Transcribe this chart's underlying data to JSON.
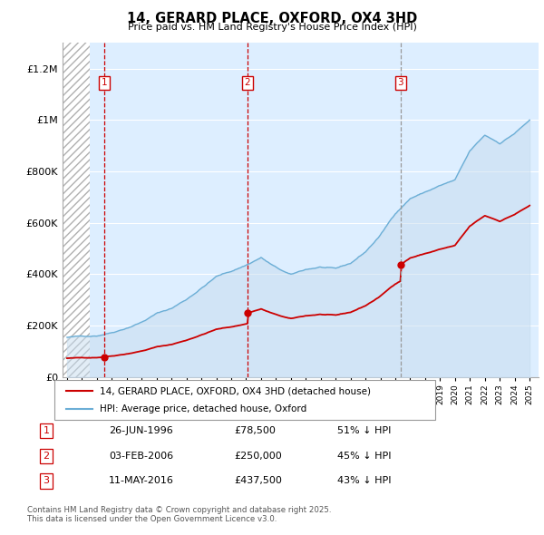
{
  "title": "14, GERARD PLACE, OXFORD, OX4 3HD",
  "subtitle": "Price paid vs. HM Land Registry's House Price Index (HPI)",
  "xlim_start": 1993.7,
  "xlim_end": 2025.6,
  "ylim": [
    0,
    1300000
  ],
  "yticks": [
    0,
    200000,
    400000,
    600000,
    800000,
    1000000,
    1200000
  ],
  "sale_dates": [
    1996.48,
    2006.09,
    2016.36
  ],
  "sale_prices": [
    78500,
    250000,
    437500
  ],
  "sale_labels": [
    "1",
    "2",
    "3"
  ],
  "hpi_line_color": "#6baed6",
  "hpi_fill_color": "#c6dcef",
  "price_line_color": "#cc0000",
  "vline_color_red": "#cc0000",
  "vline_color_gray": "#999999",
  "hatch_color": "#c8c8c8",
  "legend_items": [
    "14, GERARD PLACE, OXFORD, OX4 3HD (detached house)",
    "HPI: Average price, detached house, Oxford"
  ],
  "table_rows": [
    [
      "1",
      "26-JUN-1996",
      "£78,500",
      "51% ↓ HPI"
    ],
    [
      "2",
      "03-FEB-2006",
      "£250,000",
      "45% ↓ HPI"
    ],
    [
      "3",
      "11-MAY-2016",
      "£437,500",
      "43% ↓ HPI"
    ]
  ],
  "footnote": "Contains HM Land Registry data © Crown copyright and database right 2025.\nThis data is licensed under the Open Government Licence v3.0.",
  "bg_hatch_end": 1995.5,
  "chart_bg_color": "#ddeeff",
  "hpi_anchor_years": [
    1994,
    1995,
    1996,
    1997,
    1998,
    1999,
    2000,
    2001,
    2002,
    2003,
    2004,
    2005,
    2006,
    2007,
    2008,
    2009,
    2010,
    2011,
    2012,
    2013,
    2014,
    2015,
    2016,
    2017,
    2018,
    2019,
    2020,
    2021,
    2022,
    2023,
    2024,
    2025
  ],
  "hpi_anchor_values": [
    155000,
    158000,
    163000,
    178000,
    198000,
    222000,
    255000,
    275000,
    310000,
    355000,
    400000,
    420000,
    445000,
    475000,
    435000,
    405000,
    425000,
    435000,
    425000,
    445000,
    490000,
    555000,
    640000,
    700000,
    725000,
    750000,
    770000,
    880000,
    940000,
    910000,
    950000,
    1000000
  ]
}
